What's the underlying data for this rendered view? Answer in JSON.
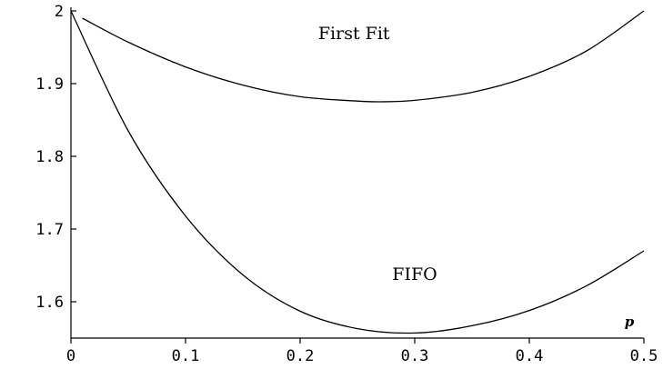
{
  "chart_data": {
    "type": "line",
    "title": "",
    "xlabel": "p",
    "ylabel": "",
    "xlim": [
      0,
      0.5
    ],
    "ylim": [
      1.55,
      2.0
    ],
    "x_ticks": [
      {
        "value": 0,
        "label": "0"
      },
      {
        "value": 0.1,
        "label": "0.1"
      },
      {
        "value": 0.2,
        "label": "0.2"
      },
      {
        "value": 0.3,
        "label": "0.3"
      },
      {
        "value": 0.4,
        "label": "0.4"
      },
      {
        "value": 0.5,
        "label": "0.5"
      }
    ],
    "y_ticks": [
      {
        "value": 1.6,
        "label": "1.6"
      },
      {
        "value": 1.7,
        "label": "1.7"
      },
      {
        "value": 1.8,
        "label": "1.8"
      },
      {
        "value": 1.9,
        "label": "1.9"
      },
      {
        "value": 2.0,
        "label": "2"
      }
    ],
    "grid": false,
    "series": [
      {
        "name": "First Fit",
        "x": [
          0.01,
          0.05,
          0.1,
          0.15,
          0.2,
          0.25,
          0.27,
          0.3,
          0.35,
          0.4,
          0.45,
          0.5
        ],
        "values": [
          1.99,
          1.957,
          1.923,
          1.898,
          1.882,
          1.876,
          1.875,
          1.877,
          1.888,
          1.91,
          1.945,
          2.0
        ]
      },
      {
        "name": "FIFO",
        "x": [
          0,
          0.05,
          0.1,
          0.15,
          0.2,
          0.25,
          0.3,
          0.35,
          0.4,
          0.45,
          0.5
        ],
        "values": [
          2.0,
          1.835,
          1.718,
          1.637,
          1.587,
          1.563,
          1.557,
          1.567,
          1.588,
          1.622,
          1.67
        ]
      }
    ],
    "annotations": [
      {
        "text": "First Fit",
        "x": 0.247,
        "y": 1.961
      },
      {
        "text": "FIFO",
        "x": 0.3,
        "y": 1.63
      }
    ]
  }
}
